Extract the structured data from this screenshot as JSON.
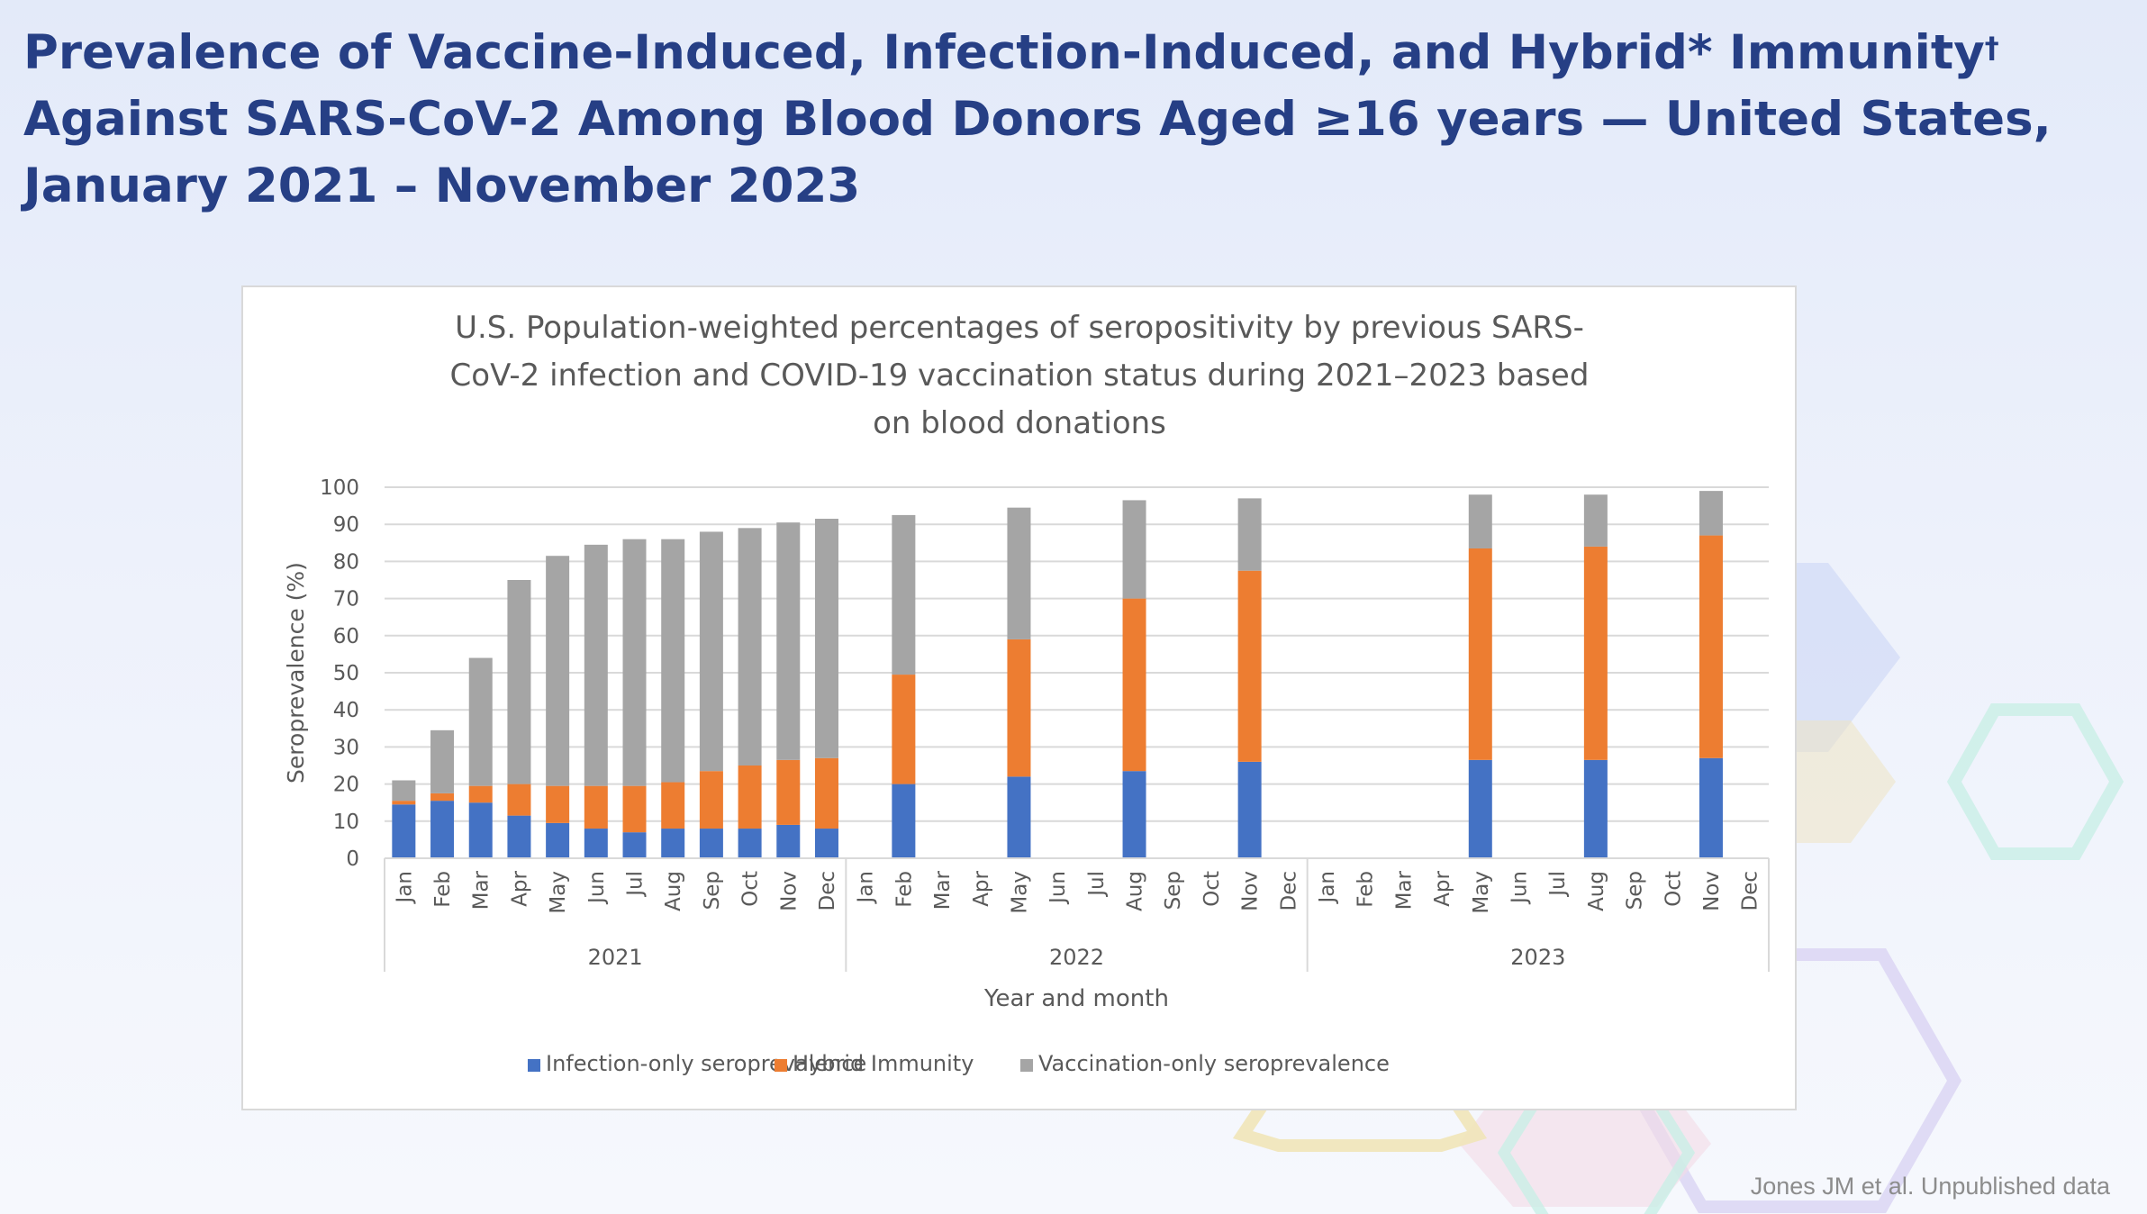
{
  "slide": {
    "title_part1": "Prevalence of Vaccine-Induced, Infection-Induced, and Hybrid* Immunity",
    "title_dagger": "†",
    "title_part2": " Against SARS-CoV-2 Among Blood Donors Aged ≥16 years — United States, January 2021 – November 2023",
    "source_note": "Jones JM et al. Unpublished data"
  },
  "colors": {
    "title": "#263f85",
    "infection": "#4472c4",
    "hybrid": "#ed7d31",
    "vaccination": "#a5a5a5",
    "grid": "#d9d9d9"
  },
  "chart_data": {
    "type": "bar",
    "stacked": true,
    "title_lines": [
      "U.S. Population-weighted percentages of seropositivity by previous SARS-",
      "CoV-2 infection and COVID-19 vaccination status during 2021–2023 based",
      "on blood donations"
    ],
    "xlabel": "Year and month",
    "ylabel": "Seroprevalence (%)",
    "ylim": [
      0,
      100
    ],
    "yticks": [
      0,
      10,
      20,
      30,
      40,
      50,
      60,
      70,
      80,
      90,
      100
    ],
    "grid": true,
    "legend_position": "bottom",
    "months": [
      "Jan",
      "Feb",
      "Mar",
      "Apr",
      "May",
      "Jun",
      "Jul",
      "Aug",
      "Sep",
      "Oct",
      "Nov",
      "Dec"
    ],
    "years": [
      "2021",
      "2022",
      "2023"
    ],
    "categories": [
      "Jan 2021",
      "Feb 2021",
      "Mar 2021",
      "Apr 2021",
      "May 2021",
      "Jun 2021",
      "Jul 2021",
      "Aug 2021",
      "Sep 2021",
      "Oct 2021",
      "Nov 2021",
      "Dec 2021",
      "Jan 2022",
      "Feb 2022",
      "Mar 2022",
      "Apr 2022",
      "May 2022",
      "Jun 2022",
      "Jul 2022",
      "Aug 2022",
      "Sep 2022",
      "Oct 2022",
      "Nov 2022",
      "Dec 2022",
      "Jan 2023",
      "Feb 2023",
      "Mar 2023",
      "Apr 2023",
      "May 2023",
      "Jun 2023",
      "Jul 2023",
      "Aug 2023",
      "Sep 2023",
      "Oct 2023",
      "Nov 2023",
      "Dec 2023"
    ],
    "series": [
      {
        "name": "Infection-only seroprevalence",
        "color": "#4472c4",
        "values": [
          14.5,
          15.5,
          15,
          11.5,
          9.5,
          8,
          7,
          8,
          8,
          8,
          9,
          8,
          null,
          20,
          null,
          null,
          22,
          null,
          null,
          23.5,
          null,
          null,
          26,
          null,
          null,
          null,
          null,
          null,
          26.5,
          null,
          null,
          26.5,
          null,
          null,
          27,
          null
        ]
      },
      {
        "name": "Hybrid Immunity",
        "color": "#ed7d31",
        "values": [
          1,
          2,
          4.5,
          8.5,
          10,
          11.5,
          12.5,
          12.5,
          15.5,
          17,
          17.5,
          19,
          null,
          29.5,
          null,
          null,
          37,
          null,
          null,
          46.5,
          null,
          null,
          51.5,
          null,
          null,
          null,
          null,
          null,
          57,
          null,
          null,
          57.5,
          null,
          null,
          60,
          null
        ]
      },
      {
        "name": "Vaccination-only seroprevalence",
        "color": "#a5a5a5",
        "values": [
          5.5,
          17,
          34.5,
          55,
          62,
          65,
          66.5,
          65.5,
          64.5,
          64,
          64,
          64.5,
          null,
          43,
          null,
          null,
          35.5,
          null,
          null,
          26.5,
          null,
          null,
          19.5,
          null,
          null,
          null,
          null,
          null,
          14.5,
          null,
          null,
          14,
          null,
          null,
          12,
          null
        ]
      }
    ]
  }
}
